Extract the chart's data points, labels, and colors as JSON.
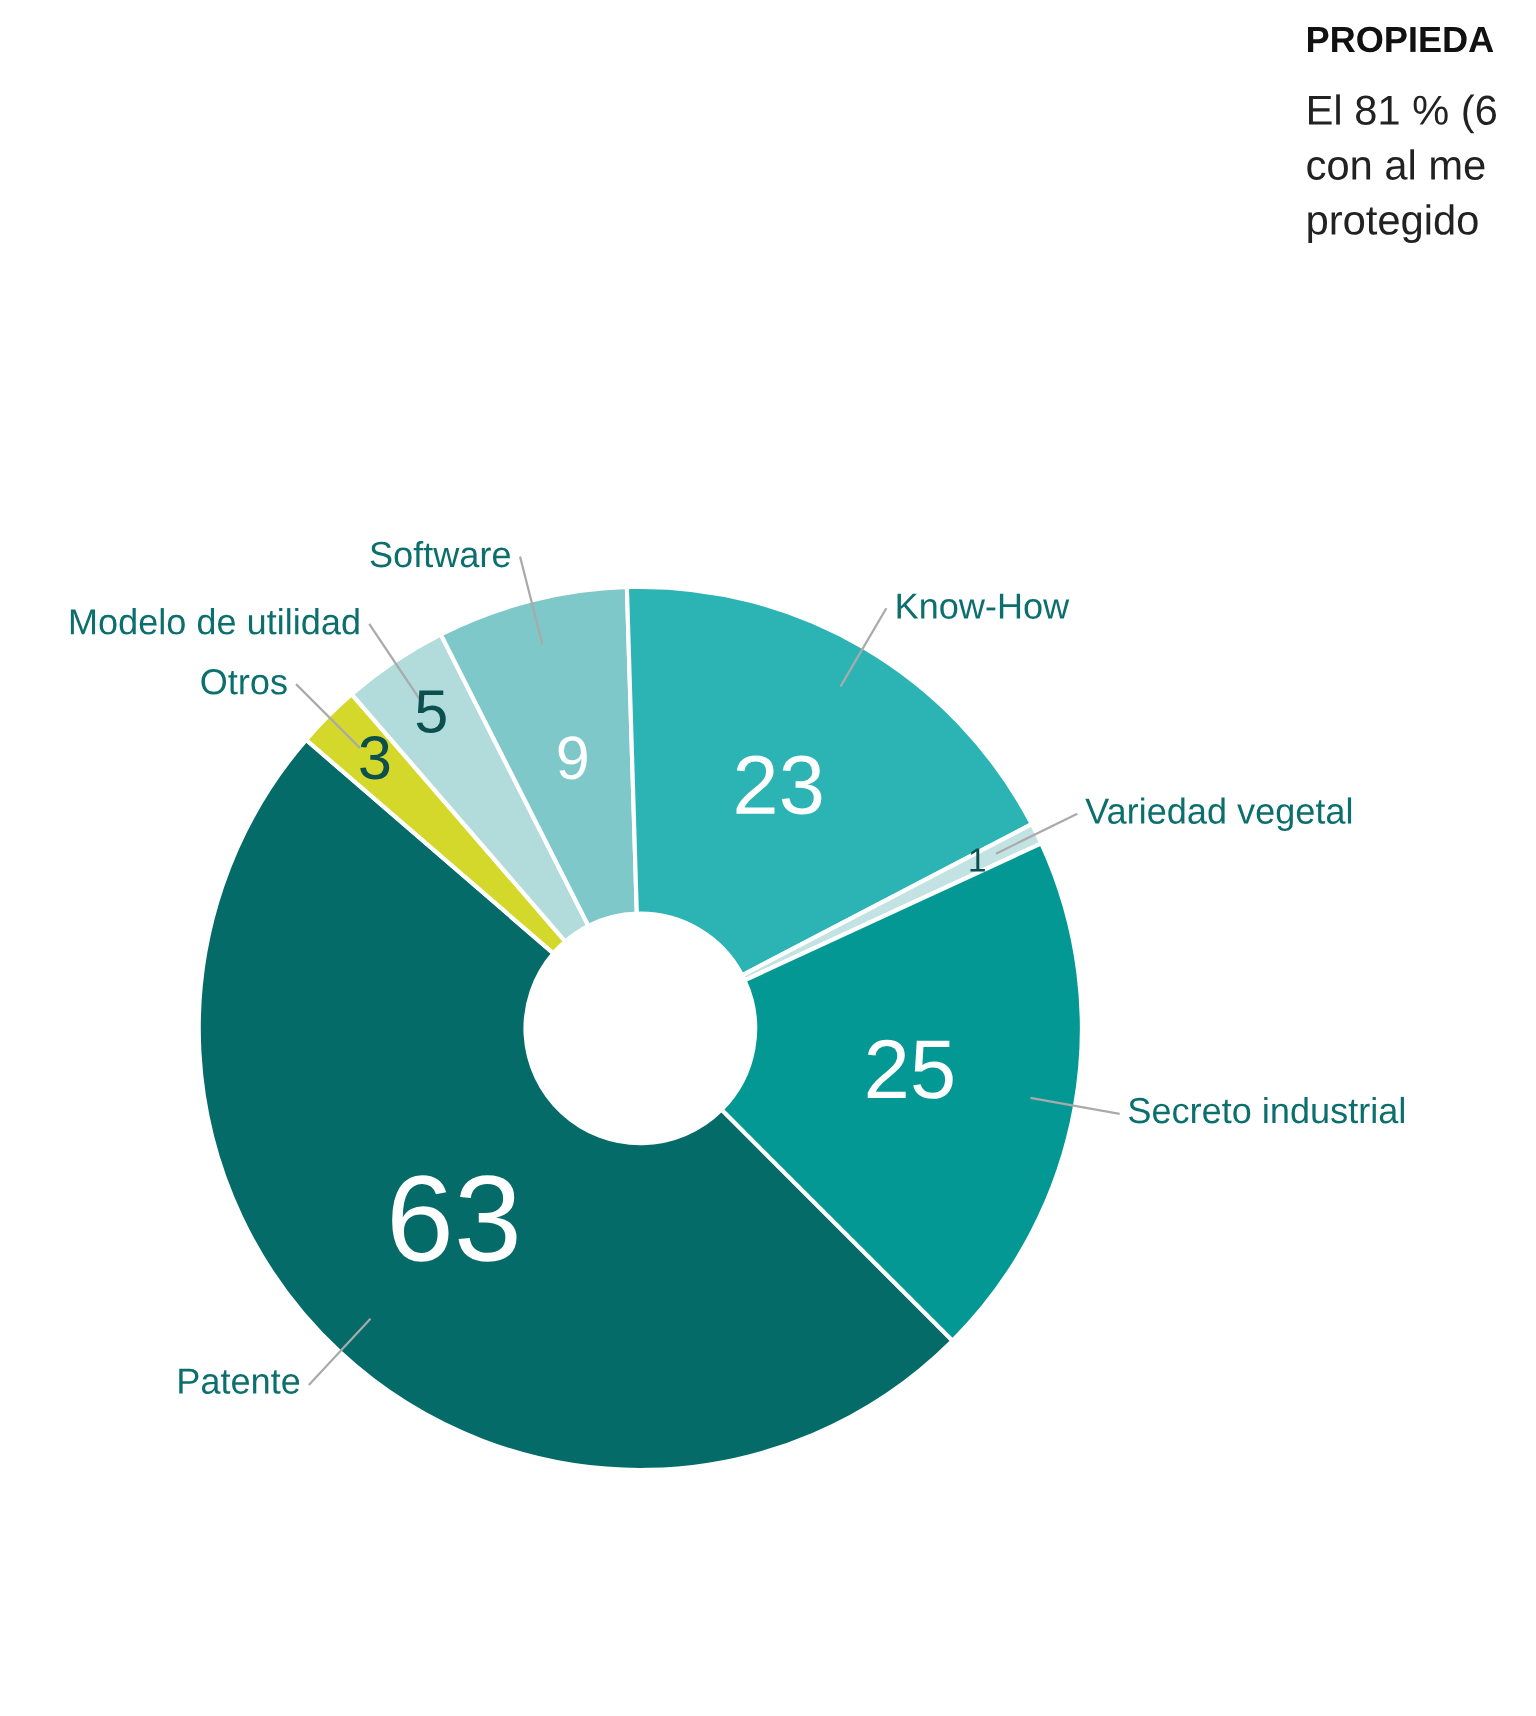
{
  "chart_data": {
    "type": "donut",
    "categories": [
      "Patente",
      "Otros",
      "Modelo de utilidad",
      "Software",
      "Know-How",
      "Variedad vegetal",
      "Secreto industrial"
    ],
    "values": [
      63,
      3,
      5,
      9,
      23,
      1,
      25
    ],
    "colors": [
      "#056b69",
      "#d4d82a",
      "#b2dcdc",
      "#7fc8ca",
      "#2cb4b5",
      "#c2e2e3",
      "#049895"
    ],
    "data_labels": true,
    "legend": false,
    "annotations": [
      "PROPIEDA",
      "El 81 % (6",
      "con al me",
      "protegido"
    ]
  }
}
